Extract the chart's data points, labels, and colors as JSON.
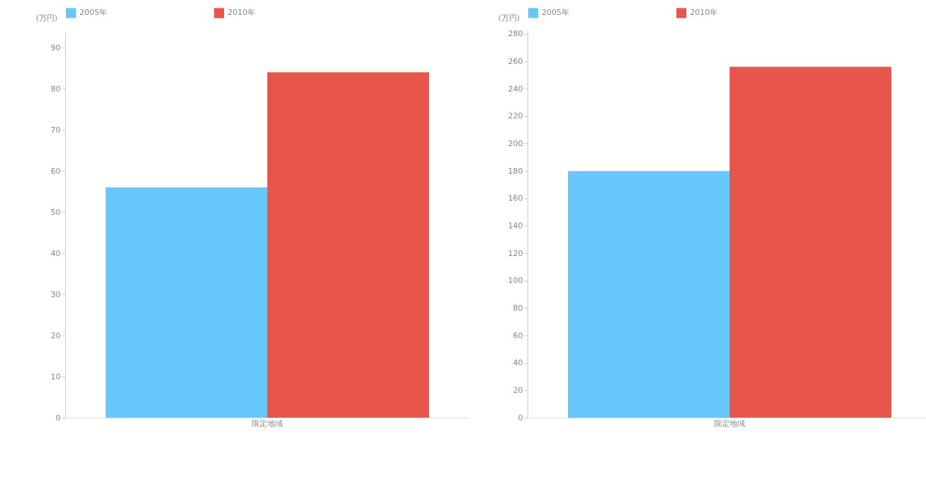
{
  "chart_data": [
    {
      "type": "bar",
      "ylabel": "(万円)",
      "categories": [
        "限定地域"
      ],
      "series": [
        {
          "name": "2005年",
          "color": "#66c8fa",
          "values": [
            56
          ]
        },
        {
          "name": "2010年",
          "color": "#e8554a",
          "values": [
            84
          ]
        }
      ],
      "ylim": [
        0,
        94
      ],
      "yticks": [
        0,
        10,
        20,
        30,
        40,
        50,
        60,
        70,
        80,
        90
      ],
      "legend": "top"
    },
    {
      "type": "bar",
      "ylabel": "(万円)",
      "categories": [
        "限定地域"
      ],
      "series": [
        {
          "name": "2005年",
          "color": "#66c8fa",
          "values": [
            180
          ]
        },
        {
          "name": "2010年",
          "color": "#e8554a",
          "values": [
            256
          ]
        }
      ],
      "ylim": [
        0,
        282
      ],
      "yticks": [
        0,
        20,
        40,
        60,
        80,
        100,
        120,
        140,
        160,
        180,
        200,
        220,
        240,
        260,
        280
      ],
      "legend": "top"
    }
  ]
}
